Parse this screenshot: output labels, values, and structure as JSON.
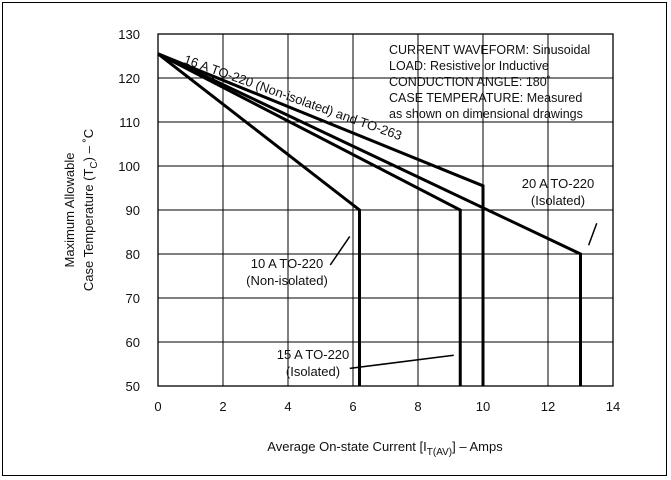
{
  "chart_data": {
    "type": "line",
    "title": "",
    "xlabel": {
      "pre": "Average On-state Current [I",
      "sub": "T(AV)",
      "post": "] – Amps"
    },
    "ylabel": {
      "line1": "Maximum Allowable",
      "line2_pre": "Case Temperature (T",
      "line2_sub": "C",
      "line2_post": ") – ˚C"
    },
    "xlim": [
      0,
      14
    ],
    "ylim": [
      50,
      130
    ],
    "x_ticks": [
      0,
      2,
      4,
      6,
      8,
      10,
      12,
      14
    ],
    "y_ticks": [
      50,
      60,
      70,
      80,
      90,
      100,
      110,
      120,
      130
    ],
    "grid": true,
    "series": [
      {
        "name": "10 A TO-220 (Non-isolated)",
        "points": [
          [
            0,
            125.5
          ],
          [
            6.2,
            90
          ],
          [
            6.2,
            50
          ]
        ]
      },
      {
        "name": "15 A TO-220 (Isolated)",
        "points": [
          [
            0,
            125.5
          ],
          [
            9.3,
            90
          ],
          [
            9.3,
            50
          ]
        ]
      },
      {
        "name": "16 A TO-220 (Non-isolated) and TO-263",
        "points": [
          [
            0,
            125.5
          ],
          [
            10,
            95.5
          ],
          [
            10,
            50
          ]
        ]
      },
      {
        "name": "20 A TO-220 (Isolated)",
        "points": [
          [
            0,
            125.5
          ],
          [
            13,
            80
          ],
          [
            13,
            50
          ]
        ]
      }
    ],
    "annotations": {
      "s16": "16 A TO-220 (Non-isolated) and TO-263",
      "s20_line1": "20 A TO-220",
      "s20_line2": "(Isolated)",
      "s10_line1": "10 A TO-220",
      "s10_line2": "(Non-isolated)",
      "s15_line1": "15 A TO-220",
      "s15_line2": "(Isolated)"
    },
    "notes": [
      "CURRENT WAVEFORM: Sinusoidal",
      "LOAD: Resistive or Inductive",
      "CONDUCTION ANGLE: 180˚",
      "CASE TEMPERATURE: Measured",
      "as shown on dimensional drawings"
    ]
  }
}
